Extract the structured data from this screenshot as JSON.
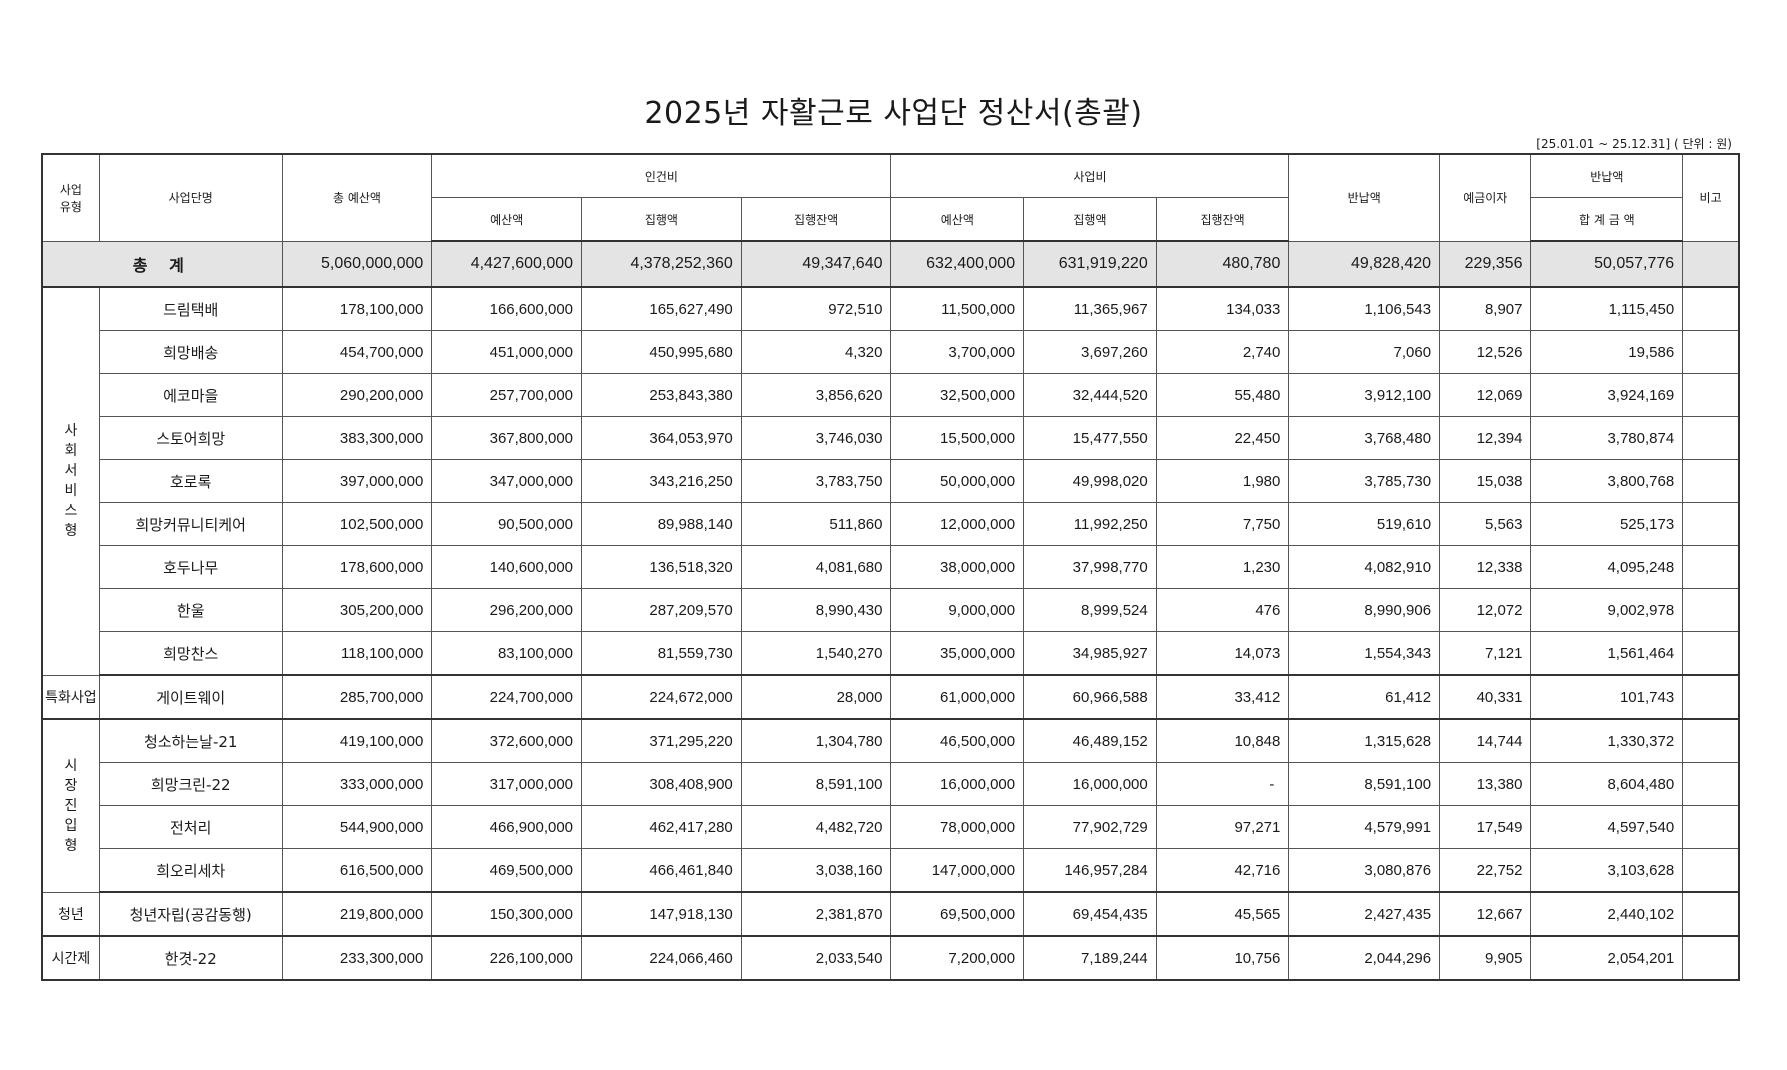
{
  "title": "2025년 자활근로 사업단 정산서(총괄)",
  "period_unit": "[25.01.01 ~ 25.12.31] ( 단위 : 원)",
  "headers": {
    "type": "사업\n유형",
    "name": "사업단명",
    "total_budget": "총 예산액",
    "labor": "인건비",
    "biz": "사업비",
    "budget": "예산액",
    "exec": "집행액",
    "balance": "집행잔액",
    "returned": "반납액",
    "interest": "예금이자",
    "return_total_group": "반납액",
    "return_total": "합 계 금 액",
    "note": "비고"
  },
  "total_row": {
    "label": "총 계",
    "total_budget": "5,060,000,000",
    "labor_budget": "4,427,600,000",
    "labor_exec": "4,378,252,360",
    "labor_balance": "49,347,640",
    "biz_budget": "632,400,000",
    "biz_exec": "631,919,220",
    "biz_balance": "480,780",
    "returned": "49,828,420",
    "interest": "229,356",
    "return_total": "50,057,776"
  },
  "groups": [
    {
      "type": "사회서비스형",
      "rows": [
        {
          "name": "드림택배",
          "total_budget": "178,100,000",
          "labor_budget": "166,600,000",
          "labor_exec": "165,627,490",
          "labor_balance": "972,510",
          "biz_budget": "11,500,000",
          "biz_exec": "11,365,967",
          "biz_balance": "134,033",
          "returned": "1,106,543",
          "interest": "8,907",
          "return_total": "1,115,450"
        },
        {
          "name": "희망배송",
          "total_budget": "454,700,000",
          "labor_budget": "451,000,000",
          "labor_exec": "450,995,680",
          "labor_balance": "4,320",
          "biz_budget": "3,700,000",
          "biz_exec": "3,697,260",
          "biz_balance": "2,740",
          "returned": "7,060",
          "interest": "12,526",
          "return_total": "19,586"
        },
        {
          "name": "에코마을",
          "total_budget": "290,200,000",
          "labor_budget": "257,700,000",
          "labor_exec": "253,843,380",
          "labor_balance": "3,856,620",
          "biz_budget": "32,500,000",
          "biz_exec": "32,444,520",
          "biz_balance": "55,480",
          "returned": "3,912,100",
          "interest": "12,069",
          "return_total": "3,924,169"
        },
        {
          "name": "스토어희망",
          "total_budget": "383,300,000",
          "labor_budget": "367,800,000",
          "labor_exec": "364,053,970",
          "labor_balance": "3,746,030",
          "biz_budget": "15,500,000",
          "biz_exec": "15,477,550",
          "biz_balance": "22,450",
          "returned": "3,768,480",
          "interest": "12,394",
          "return_total": "3,780,874"
        },
        {
          "name": "호로록",
          "total_budget": "397,000,000",
          "labor_budget": "347,000,000",
          "labor_exec": "343,216,250",
          "labor_balance": "3,783,750",
          "biz_budget": "50,000,000",
          "biz_exec": "49,998,020",
          "biz_balance": "1,980",
          "returned": "3,785,730",
          "interest": "15,038",
          "return_total": "3,800,768"
        },
        {
          "name": "희망커뮤니티케어",
          "total_budget": "102,500,000",
          "labor_budget": "90,500,000",
          "labor_exec": "89,988,140",
          "labor_balance": "511,860",
          "biz_budget": "12,000,000",
          "biz_exec": "11,992,250",
          "biz_balance": "7,750",
          "returned": "519,610",
          "interest": "5,563",
          "return_total": "525,173"
        },
        {
          "name": "호두나무",
          "total_budget": "178,600,000",
          "labor_budget": "140,600,000",
          "labor_exec": "136,518,320",
          "labor_balance": "4,081,680",
          "biz_budget": "38,000,000",
          "biz_exec": "37,998,770",
          "biz_balance": "1,230",
          "returned": "4,082,910",
          "interest": "12,338",
          "return_total": "4,095,248"
        },
        {
          "name": "한울",
          "total_budget": "305,200,000",
          "labor_budget": "296,200,000",
          "labor_exec": "287,209,570",
          "labor_balance": "8,990,430",
          "biz_budget": "9,000,000",
          "biz_exec": "8,999,524",
          "biz_balance": "476",
          "returned": "8,990,906",
          "interest": "12,072",
          "return_total": "9,002,978"
        },
        {
          "name": "희망찬스",
          "total_budget": "118,100,000",
          "labor_budget": "83,100,000",
          "labor_exec": "81,559,730",
          "labor_balance": "1,540,270",
          "biz_budget": "35,000,000",
          "biz_exec": "34,985,927",
          "biz_balance": "14,073",
          "returned": "1,554,343",
          "interest": "7,121",
          "return_total": "1,561,464"
        }
      ]
    },
    {
      "type": "특화사업",
      "rows": [
        {
          "name": "게이트웨이",
          "total_budget": "285,700,000",
          "labor_budget": "224,700,000",
          "labor_exec": "224,672,000",
          "labor_balance": "28,000",
          "biz_budget": "61,000,000",
          "biz_exec": "60,966,588",
          "biz_balance": "33,412",
          "returned": "61,412",
          "interest": "40,331",
          "return_total": "101,743"
        }
      ]
    },
    {
      "type": "시장진입형",
      "rows": [
        {
          "name": "청소하는날-21",
          "total_budget": "419,100,000",
          "labor_budget": "372,600,000",
          "labor_exec": "371,295,220",
          "labor_balance": "1,304,780",
          "biz_budget": "46,500,000",
          "biz_exec": "46,489,152",
          "biz_balance": "10,848",
          "returned": "1,315,628",
          "interest": "14,744",
          "return_total": "1,330,372"
        },
        {
          "name": "희망크린-22",
          "total_budget": "333,000,000",
          "labor_budget": "317,000,000",
          "labor_exec": "308,408,900",
          "labor_balance": "8,591,100",
          "biz_budget": "16,000,000",
          "biz_exec": "16,000,000",
          "biz_balance": "-",
          "returned": "8,591,100",
          "interest": "13,380",
          "return_total": "8,604,480"
        },
        {
          "name": "전처리",
          "total_budget": "544,900,000",
          "labor_budget": "466,900,000",
          "labor_exec": "462,417,280",
          "labor_balance": "4,482,720",
          "biz_budget": "78,000,000",
          "biz_exec": "77,902,729",
          "biz_balance": "97,271",
          "returned": "4,579,991",
          "interest": "17,549",
          "return_total": "4,597,540"
        },
        {
          "name": "희오리세차",
          "total_budget": "616,500,000",
          "labor_budget": "469,500,000",
          "labor_exec": "466,461,840",
          "labor_balance": "3,038,160",
          "biz_budget": "147,000,000",
          "biz_exec": "146,957,284",
          "biz_balance": "42,716",
          "returned": "3,080,876",
          "interest": "22,752",
          "return_total": "3,103,628"
        }
      ]
    },
    {
      "type": "청년",
      "rows": [
        {
          "name": "청년자립(공감동행)",
          "total_budget": "219,800,000",
          "labor_budget": "150,300,000",
          "labor_exec": "147,918,130",
          "labor_balance": "2,381,870",
          "biz_budget": "69,500,000",
          "biz_exec": "69,454,435",
          "biz_balance": "45,565",
          "returned": "2,427,435",
          "interest": "12,667",
          "return_total": "2,440,102"
        }
      ]
    },
    {
      "type": "시간제",
      "rows": [
        {
          "name": "한겻-22",
          "total_budget": "233,300,000",
          "labor_budget": "226,100,000",
          "labor_exec": "224,066,460",
          "labor_balance": "2,033,540",
          "biz_budget": "7,200,000",
          "biz_exec": "7,189,244",
          "biz_balance": "10,756",
          "returned": "2,044,296",
          "interest": "9,905",
          "return_total": "2,054,201"
        }
      ]
    }
  ]
}
